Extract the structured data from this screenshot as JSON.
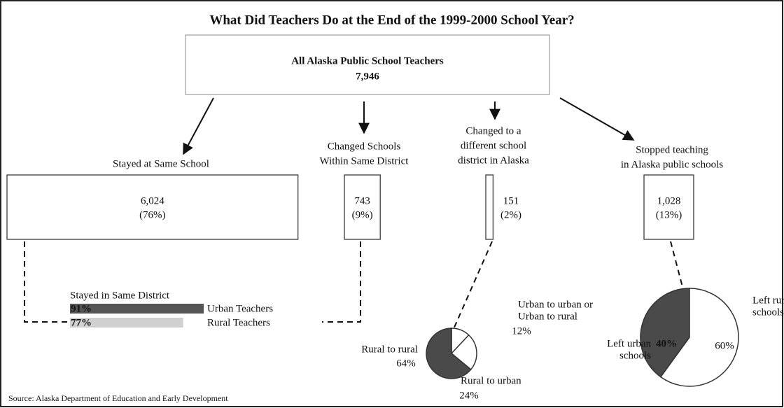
{
  "title": "What Did Teachers Do at the End of the 1999-2000 School Year?",
  "top": {
    "heading": "All Alaska Public School Teachers",
    "total": "7,946"
  },
  "branches": [
    {
      "label": [
        "Stayed at Same School"
      ],
      "count": {
        "value": 6024,
        "label": "6,024"
      },
      "share": "(76%)"
    },
    {
      "label": [
        "Changed Schools",
        "Within Same District"
      ],
      "count": {
        "value": 743,
        "label": "743"
      },
      "share": "(9%)"
    },
    {
      "label": [
        "Changed to a",
        "different school",
        "district in Alaska"
      ],
      "count": {
        "value": 151,
        "label": "151"
      },
      "share": "(2%)"
    },
    {
      "label": [
        "Stopped teaching",
        "in Alaska public schools"
      ],
      "count": {
        "value": 1028,
        "label": "1,028"
      },
      "share": "(13%)"
    }
  ],
  "same_district": {
    "title": "Stayed in Same District",
    "bars": [
      {
        "name": "Urban Teachers",
        "value": 91,
        "label": "91%",
        "color": "#555555"
      },
      {
        "name": "Rural Teachers",
        "value": 77,
        "label": "77%",
        "color": "#d0d0d0"
      }
    ]
  },
  "pies": [
    {
      "slices": [
        {
          "name": [
            "Urban to urban or",
            "Urban to rural"
          ],
          "value": 12,
          "label": "12%",
          "color": "#ffffff"
        },
        {
          "name": [
            "Rural to urban"
          ],
          "value": 24,
          "label": "24%",
          "color": "#ffffff"
        },
        {
          "name": [
            "Rural to rural"
          ],
          "value": 64,
          "label": "64%",
          "color": "#4a4a4a"
        }
      ]
    },
    {
      "slices": [
        {
          "name": [
            "Left urban",
            "schools"
          ],
          "value": 40,
          "label": "40%",
          "color": "#4a4a4a"
        },
        {
          "name": [
            "Left rural",
            "schools"
          ],
          "value": 60,
          "label": "60%",
          "color": "#ffffff"
        }
      ]
    }
  ],
  "source": "Source: Alaska Department of Education and Early Development"
}
